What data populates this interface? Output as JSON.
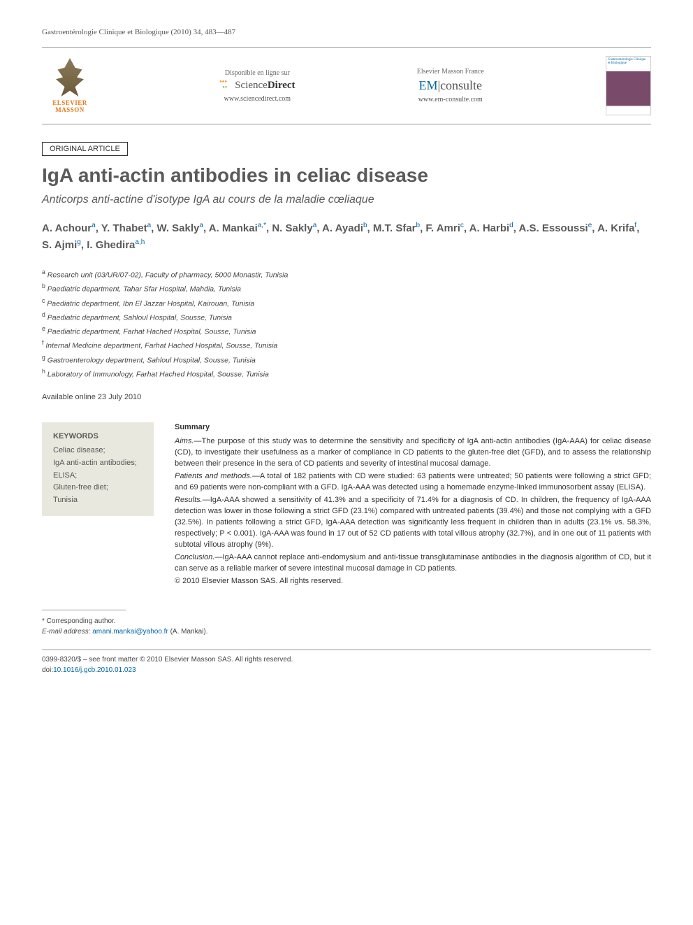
{
  "journal_ref": "Gastroentérologie Clinique et Biologique (2010) 34, 483—487",
  "header": {
    "elsevier_name": "ELSEVIER",
    "elsevier_sub": "MASSON",
    "sd_label": "Disponible en ligne sur",
    "sd_name_light": "Science",
    "sd_name_bold": "Direct",
    "sd_url": "www.sciencedirect.com",
    "em_brand": "Elsevier Masson France",
    "em_prefix": "EM",
    "em_name": "consulte",
    "em_url": "www.em-consulte.com",
    "cover_text": "Gastroentérologie Clinique et Biologique"
  },
  "article_type": "ORIGINAL ARTICLE",
  "title": "IgA anti-actin antibodies in celiac disease",
  "subtitle": "Anticorps anti-actine d'isotype IgA au cours de la maladie cœliaque",
  "authors_html": "A. Achour<sup>a</sup>, Y. Thabet<sup>a</sup>, W. Sakly<sup>a</sup>, A. Mankai<sup>a,*</sup>, N. Sakly<sup>a</sup>, A. Ayadi<sup>b</sup>, M.T. Sfar<sup>b</sup>, F. Amri<sup>c</sup>, A. Harbi<sup>d</sup>, A.S. Essoussi<sup>e</sup>, A. Krifa<sup>f</sup>, S. Ajmi<sup>g</sup>, I. Ghedira<sup>a,h</sup>",
  "affiliations": [
    {
      "sup": "a",
      "text": "Research unit (03/UR/07-02), Faculty of pharmacy, 5000 Monastir, Tunisia"
    },
    {
      "sup": "b",
      "text": "Paediatric department, Tahar Sfar Hospital, Mahdia, Tunisia"
    },
    {
      "sup": "c",
      "text": "Paediatric department, Ibn El Jazzar Hospital, Kairouan, Tunisia"
    },
    {
      "sup": "d",
      "text": "Paediatric department, Sahloul Hospital, Sousse, Tunisia"
    },
    {
      "sup": "e",
      "text": "Paediatric department, Farhat Hached Hospital, Sousse, Tunisia"
    },
    {
      "sup": "f",
      "text": "Internal Medicine department, Farhat Hached Hospital, Sousse, Tunisia"
    },
    {
      "sup": "g",
      "text": "Gastroenterology department, Sahloul Hospital, Sousse, Tunisia"
    },
    {
      "sup": "h",
      "text": "Laboratory of Immunology, Farhat Hached Hospital, Sousse, Tunisia"
    }
  ],
  "available_date": "Available online 23 July 2010",
  "keywords": {
    "heading": "KEYWORDS",
    "body": "Celiac disease;\nIgA anti-actin antibodies;\nELISA;\nGluten-free diet;\nTunisia"
  },
  "summary": {
    "heading": "Summary",
    "aims_label": "Aims.—",
    "aims": "The purpose of this study was to determine the sensitivity and specificity of IgA anti-actin antibodies (IgA-AAA) for celiac disease (CD), to investigate their usefulness as a marker of compliance in CD patients to the gluten-free diet (GFD), and to assess the relationship between their presence in the sera of CD patients and severity of intestinal mucosal damage.",
    "methods_label": "Patients and methods.—",
    "methods": "A total of 182 patients with CD were studied: 63 patients were untreated; 50 patients were following a strict GFD; and 69 patients were non-compliant with a GFD. IgA-AAA was detected using a homemade enzyme-linked immunosorbent assay (ELISA).",
    "results_label": "Results.—",
    "results": "IgA-AAA showed a sensitivity of 41.3% and a specificity of 71.4% for a diagnosis of CD. In children, the frequency of IgA-AAA detection was lower in those following a strict GFD (23.1%) compared with untreated patients (39.4%) and those not complying with a GFD (32.5%). In patients following a strict GFD, IgA-AAA detection was significantly less frequent in children than in adults (23.1% vs. 58.3%, respectively; P < 0.001). IgA-AAA was found in 17 out of 52 CD patients with total villous atrophy (32.7%), and in one out of 11 patients with subtotal villous atrophy (9%).",
    "conclusion_label": "Conclusion.—",
    "conclusion": "IgA-AAA cannot replace anti-endomysium and anti-tissue transglutaminase antibodies in the diagnosis algorithm of CD, but it can serve as a reliable marker of severe intestinal mucosal damage in CD patients.",
    "copyright": "© 2010 Elsevier Masson SAS. All rights reserved."
  },
  "corresponding": {
    "label": "* Corresponding author.",
    "email_label": "E-mail address:",
    "email": "amani.mankai@yahoo.fr",
    "email_name": "(A. Mankai)."
  },
  "footer": {
    "line1": "0399-8320/$ – see front matter © 2010 Elsevier Masson SAS. All rights reserved.",
    "doi_label": "doi:",
    "doi": "10.1016/j.gcb.2010.01.023"
  },
  "colors": {
    "link": "#0066a4",
    "heading_gray": "#5a5a5a",
    "keyword_bg": "#e8e8de",
    "elsevier_orange": "#e67817"
  }
}
